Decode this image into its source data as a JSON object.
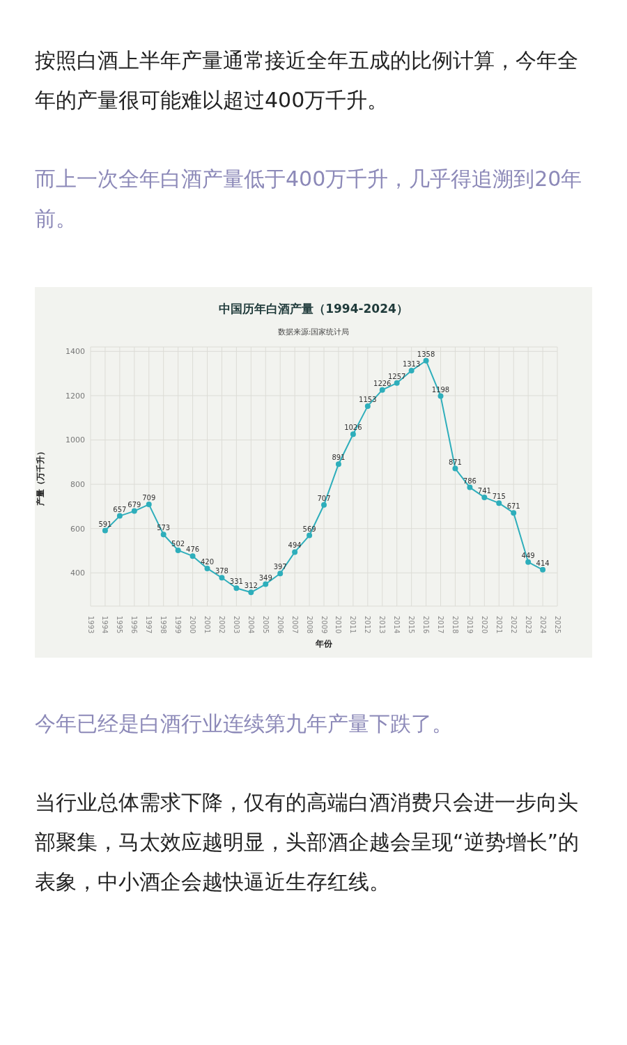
{
  "chart_data": {
    "type": "line",
    "title": "中国历年白酒产量（1994-2024）",
    "subtitle": "数据来源:国家统计局",
    "xlabel": "年份",
    "ylabel": "产量（万千升）",
    "annotations": [
      "按照白酒上半年产量通常接近全年五成的比例计算，今年全年的产量很可能难以超过400万千升。",
      "而上一次全年白酒产量低于400万千升，几乎得追溯到20年前。",
      "今年已经是白酒行业连续第九年产量下跌了。",
      "当行业总体需求下降，仅有的高端白酒消费只会进一步向头部聚集，马太效应越明显，头部酒企越会呈现“逆势增长”的表象，中小酒企会越快逼近生存红线。"
    ],
    "x": [
      1994,
      1995,
      1996,
      1997,
      1998,
      1999,
      2000,
      2001,
      2002,
      2003,
      2004,
      2005,
      2006,
      2007,
      2008,
      2009,
      2010,
      2011,
      2012,
      2013,
      2014,
      2015,
      2016,
      2017,
      2018,
      2019,
      2020,
      2021,
      2022,
      2023,
      2024
    ],
    "series": [
      {
        "color": "#2eaebb",
        "values": [
          591,
          657,
          679,
          709,
          573,
          502,
          476,
          420,
          378,
          331,
          312,
          349,
          397,
          494,
          569,
          707,
          891,
          1026,
          1153,
          1226,
          1257,
          1313,
          1358,
          1198,
          871,
          786,
          741,
          715,
          671,
          449,
          414
        ]
      }
    ],
    "data_labels": true,
    "marker": "circle",
    "line_style": "solid",
    "grid": true,
    "xlim": [
      1993,
      2025
    ],
    "xticks": [
      1993,
      1994,
      1995,
      1996,
      1997,
      1998,
      1999,
      2000,
      2001,
      2002,
      2003,
      2004,
      2005,
      2006,
      2007,
      2008,
      2009,
      2010,
      2011,
      2012,
      2013,
      2014,
      2015,
      2016,
      2017,
      2018,
      2019,
      2020,
      2021,
      2022,
      2023,
      2024,
      2025
    ],
    "ylim": [
      250,
      1420
    ],
    "yticks": [
      400,
      600,
      800,
      1000,
      1200,
      1400
    ]
  }
}
